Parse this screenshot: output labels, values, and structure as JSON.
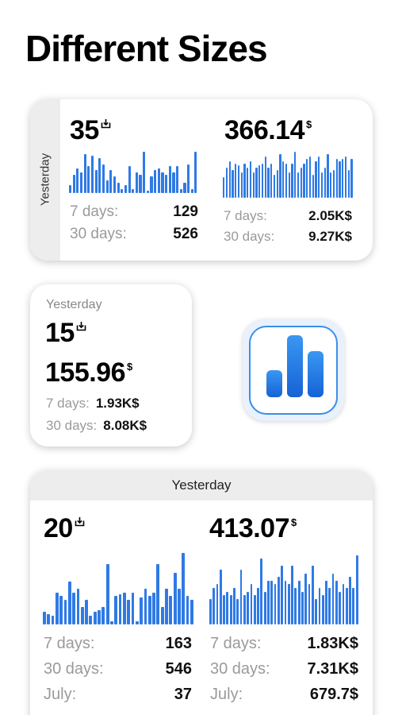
{
  "page_title": "Different Sizes",
  "accent": "#2f7ae5",
  "medium": {
    "side_label": "Yesterday",
    "downloads": "35",
    "revenue": "366.14",
    "currency": "$",
    "left_rows": [
      {
        "label": "7 days:",
        "value": "129"
      },
      {
        "label": "30 days:",
        "value": "526"
      }
    ],
    "right_rows": [
      {
        "label": "7 days:",
        "value": "2.05K$"
      },
      {
        "label": "30 days:",
        "value": "9.27K$"
      }
    ],
    "left_bars": [
      0.2,
      0.45,
      0.6,
      0.5,
      0.95,
      0.65,
      0.9,
      0.55,
      0.85,
      0.7,
      0.3,
      0.55,
      0.4,
      0.25,
      0.1,
      0.2,
      0.65,
      0.1,
      0.5,
      0.45,
      1.0,
      0.05,
      0.4,
      0.55,
      0.6,
      0.5,
      0.45,
      0.65,
      0.5,
      0.65,
      0.1,
      0.25,
      0.7,
      0.1,
      1.0
    ],
    "right_bars": [
      0.45,
      0.65,
      0.8,
      0.6,
      0.75,
      0.7,
      0.55,
      0.75,
      0.65,
      0.8,
      0.55,
      0.65,
      0.7,
      0.75,
      0.9,
      0.65,
      0.75,
      0.5,
      0.6,
      0.95,
      0.8,
      0.75,
      0.55,
      0.75,
      1.0,
      0.55,
      0.65,
      0.75,
      0.85,
      0.9,
      0.5,
      0.8,
      0.9,
      0.55,
      0.65,
      0.95,
      0.55,
      0.6,
      0.85,
      0.8,
      0.85,
      0.9,
      0.6,
      0.85
    ]
  },
  "small": {
    "label": "Yesterday",
    "downloads": "15",
    "revenue": "155.96",
    "currency": "$",
    "rows": [
      {
        "label": "7 days:",
        "value": "1.93K$"
      },
      {
        "label": "30 days:",
        "value": "8.08K$"
      }
    ]
  },
  "large": {
    "header": "Yesterday",
    "downloads": "20",
    "revenue": "413.07",
    "currency": "$",
    "left_rows": [
      {
        "label": "7 days:",
        "value": "163"
      },
      {
        "label": "30 days:",
        "value": "546"
      },
      {
        "label": "July:",
        "value": "37"
      }
    ],
    "right_rows": [
      {
        "label": "7 days:",
        "value": "1.83K$"
      },
      {
        "label": "30 days:",
        "value": "7.31K$"
      },
      {
        "label": "July:",
        "value": "679.7$"
      }
    ],
    "left_bars": [
      0.18,
      0.15,
      0.12,
      0.45,
      0.4,
      0.35,
      0.6,
      0.45,
      0.5,
      0.25,
      0.35,
      0.12,
      0.18,
      0.2,
      0.25,
      0.85,
      0.05,
      0.4,
      0.42,
      0.45,
      0.35,
      0.45,
      0.05,
      0.38,
      0.5,
      0.4,
      0.45,
      0.85,
      0.25,
      0.5,
      0.4,
      0.72,
      0.5,
      1.0,
      0.4,
      0.35
    ],
    "right_bars": [
      0.35,
      0.5,
      0.55,
      0.75,
      0.4,
      0.45,
      0.4,
      0.5,
      0.35,
      0.75,
      0.4,
      0.45,
      0.55,
      0.4,
      0.5,
      0.9,
      0.45,
      0.6,
      0.6,
      0.55,
      0.65,
      0.8,
      0.6,
      0.55,
      0.8,
      0.5,
      0.6,
      0.45,
      0.7,
      0.55,
      0.8,
      0.35,
      0.5,
      0.4,
      0.6,
      0.5,
      0.7,
      0.6,
      0.45,
      0.55,
      0.5,
      0.65,
      0.5,
      0.95
    ]
  }
}
